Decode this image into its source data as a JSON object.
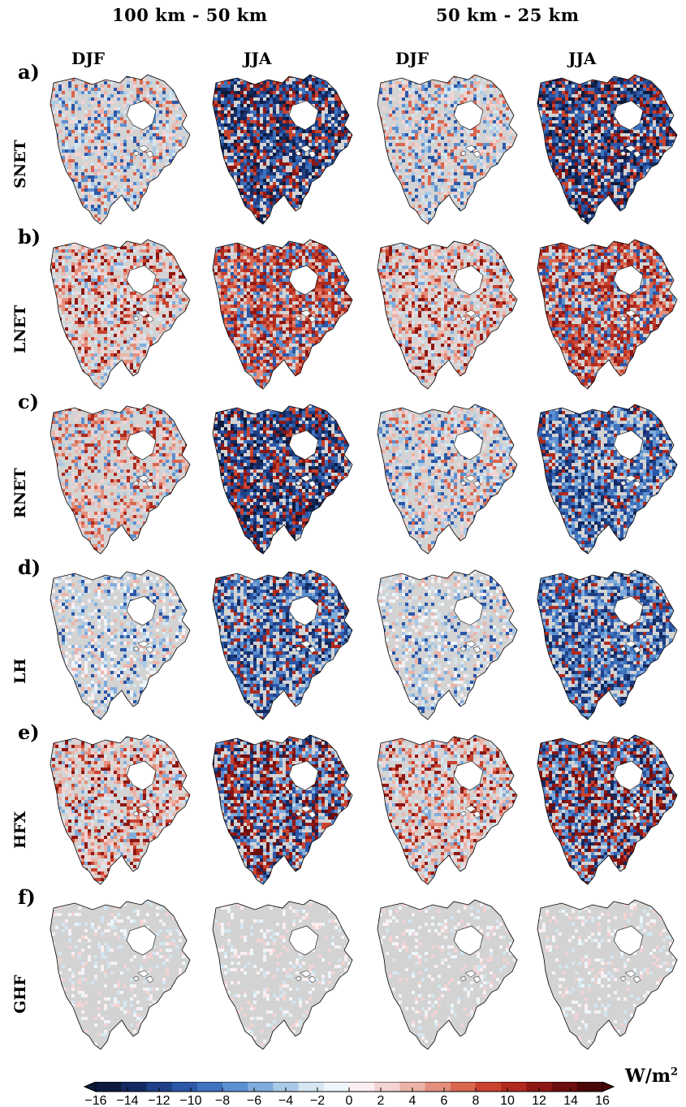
{
  "headers": {
    "group_left": "100 km - 50 km",
    "group_right": "50 km - 25 km",
    "seasons": [
      "DJF",
      "JJA",
      "DJF",
      "JJA"
    ]
  },
  "rows": [
    {
      "letter": "a)",
      "variable": "SNET",
      "panels": [
        "weak-mixed",
        "strong-blue",
        "weak-mixed",
        "strong-blue"
      ]
    },
    {
      "letter": "b)",
      "variable": "LNET",
      "panels": [
        "red-mixed",
        "strong-red",
        "red-mixed",
        "strong-red"
      ]
    },
    {
      "letter": "c)",
      "variable": "RNET",
      "panels": [
        "weak-red",
        "strong-blue",
        "weak-mixed",
        "medium-blue"
      ]
    },
    {
      "letter": "d)",
      "variable": "LH",
      "panels": [
        "pale-mixed",
        "medium-blue",
        "pale-mixed",
        "medium-blue"
      ]
    },
    {
      "letter": "e)",
      "variable": "HFX",
      "panels": [
        "red-mixed",
        "blue-red",
        "red-mixed",
        "blue-red"
      ]
    },
    {
      "letter": "f)",
      "variable": "GHF",
      "panels": [
        "grey",
        "grey",
        "grey",
        "grey"
      ]
    }
  ],
  "colorbar": {
    "ticks": [
      "−16",
      "−14",
      "−12",
      "−10",
      "−8",
      "−6",
      "−4",
      "−2",
      "0",
      "2",
      "4",
      "6",
      "8",
      "10",
      "12",
      "14",
      "16"
    ],
    "unit": "W/m",
    "unit_exp": "2",
    "colors_negative": [
      "#0c1a3d",
      "#14295f",
      "#1f3f86",
      "#2c57a8",
      "#3f73be",
      "#5b8fcf",
      "#80acdc",
      "#a9c9e6",
      "#d4e6f1",
      "#eef6fb"
    ],
    "colors_positive": [
      "#fbeef0",
      "#f4d3d3",
      "#ecb3a8",
      "#e48f7d",
      "#d9664f",
      "#c9432f",
      "#b02a1e",
      "#8f1713",
      "#6e0d0e",
      "#4a0608"
    ]
  },
  "map_colors": {
    "land_grey": "#d3d3d3",
    "water_white": "#ffffff"
  }
}
